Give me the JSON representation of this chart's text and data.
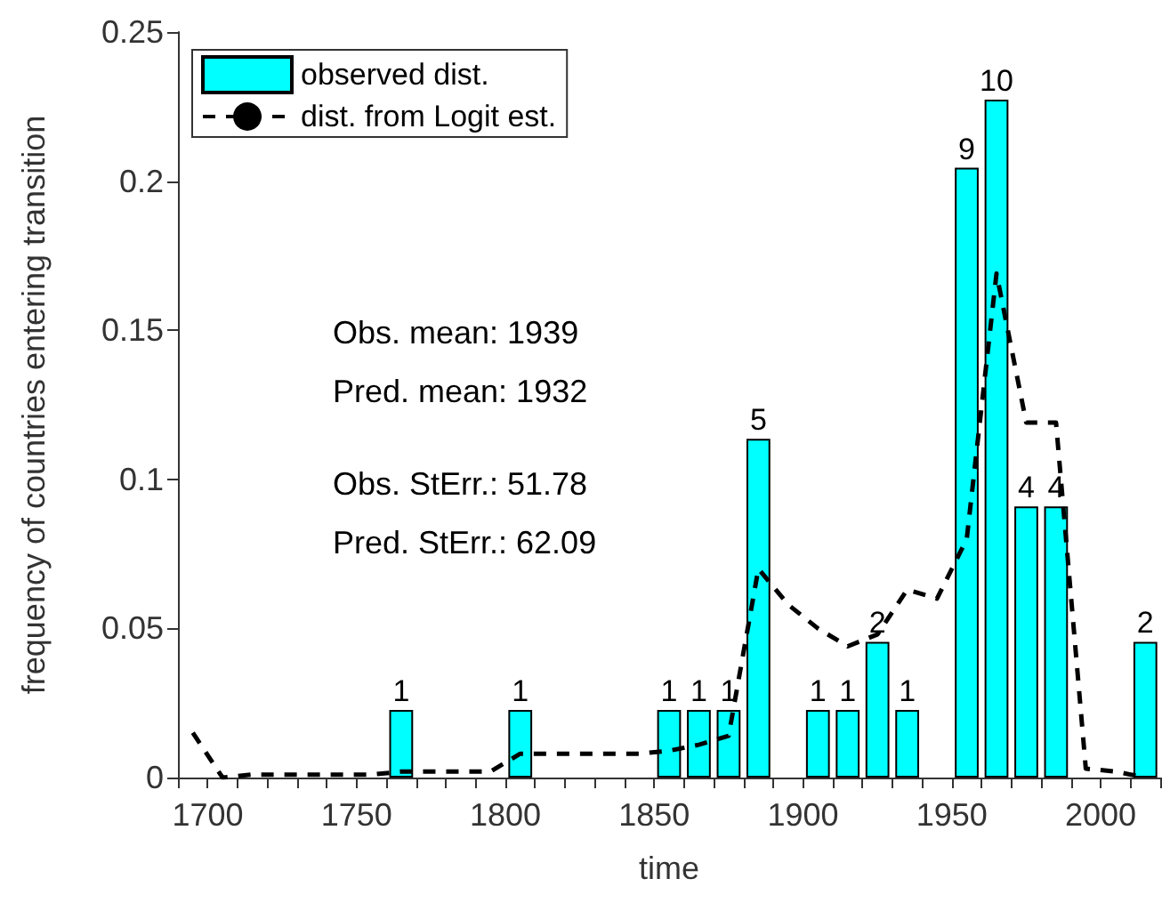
{
  "chart_data": {
    "type": "bar",
    "xlabel": "time",
    "ylabel": "frequency of countries entering transition",
    "series": [
      {
        "name": "observed dist.",
        "color": "#00ffff",
        "x": [
          1765,
          1805,
          1855,
          1865,
          1875,
          1885,
          1905,
          1915,
          1925,
          1935,
          1955,
          1965,
          1975,
          1985,
          2015
        ],
        "values": [
          0.0227,
          0.0227,
          0.0227,
          0.0227,
          0.0227,
          0.1136,
          0.0227,
          0.0227,
          0.0455,
          0.0227,
          0.2045,
          0.2273,
          0.0909,
          0.0909,
          0.0455
        ]
      },
      {
        "name": "dist. from Logit est.",
        "type": "line",
        "color": "#000000",
        "line_style": "dashed",
        "marker": "none",
        "x": [
          1695,
          1705,
          1715,
          1725,
          1735,
          1745,
          1755,
          1765,
          1775,
          1785,
          1795,
          1805,
          1815,
          1825,
          1835,
          1845,
          1855,
          1865,
          1875,
          1885,
          1895,
          1905,
          1915,
          1925,
          1935,
          1945,
          1955,
          1965,
          1975,
          1985,
          1995,
          2005,
          2015
        ],
        "values": [
          0.015,
          0.0,
          0.001,
          0.001,
          0.001,
          0.001,
          0.001,
          0.002,
          0.002,
          0.002,
          0.002,
          0.008,
          0.008,
          0.008,
          0.008,
          0.008,
          0.009,
          0.011,
          0.014,
          0.07,
          0.058,
          0.05,
          0.044,
          0.048,
          0.063,
          0.06,
          0.08,
          0.169,
          0.119,
          0.119,
          0.003,
          0.002,
          0.0
        ]
      }
    ],
    "xlim": [
      1690,
      2020
    ],
    "xticks": [
      {
        "value": 1690,
        "label": null
      },
      1700,
      {
        "value": 1710,
        "label": null
      },
      {
        "value": 1720,
        "label": null
      },
      {
        "value": 1730,
        "label": null
      },
      {
        "value": 1740,
        "label": null
      },
      1750,
      {
        "value": 1760,
        "label": null
      },
      {
        "value": 1770,
        "label": null
      },
      {
        "value": 1780,
        "label": null
      },
      {
        "value": 1790,
        "label": null
      },
      1800,
      {
        "value": 1810,
        "label": null
      },
      {
        "value": 1820,
        "label": null
      },
      {
        "value": 1830,
        "label": null
      },
      {
        "value": 1840,
        "label": null
      },
      1850,
      {
        "value": 1860,
        "label": null
      },
      {
        "value": 1870,
        "label": null
      },
      {
        "value": 1880,
        "label": null
      },
      {
        "value": 1890,
        "label": null
      },
      1900,
      {
        "value": 1910,
        "label": null
      },
      {
        "value": 1920,
        "label": null
      },
      {
        "value": 1930,
        "label": null
      },
      {
        "value": 1940,
        "label": null
      },
      1950,
      {
        "value": 1960,
        "label": null
      },
      {
        "value": 1970,
        "label": null
      },
      {
        "value": 1980,
        "label": null
      },
      {
        "value": 1990,
        "label": null
      },
      2000,
      {
        "value": 2010,
        "label": null
      },
      {
        "value": 2020,
        "label": null
      }
    ],
    "ylim": [
      0,
      0.25
    ],
    "yticks": [
      0,
      0.05,
      0.1,
      0.15,
      0.2,
      0.25
    ],
    "grid": false,
    "legend": "top left",
    "annotations": [
      "Obs. mean: 1939",
      "Pred. mean: 1932",
      "Obs. StErr.: 51.78",
      "Pred. StErr.: 62.09",
      {
        "text": "1",
        "x": 1765,
        "y": 0.0227
      },
      {
        "text": "1",
        "x": 1805,
        "y": 0.0227
      },
      {
        "text": "1",
        "x": 1855,
        "y": 0.0227
      },
      {
        "text": "1",
        "x": 1865,
        "y": 0.0227
      },
      {
        "text": "1",
        "x": 1875,
        "y": 0.0227
      },
      {
        "text": "5",
        "x": 1885,
        "y": 0.1136
      },
      {
        "text": "1",
        "x": 1905,
        "y": 0.0227
      },
      {
        "text": "1",
        "x": 1915,
        "y": 0.0227
      },
      {
        "text": "2",
        "x": 1925,
        "y": 0.0455
      },
      {
        "text": "1",
        "x": 1935,
        "y": 0.0227
      },
      {
        "text": "9",
        "x": 1955,
        "y": 0.2045
      },
      {
        "text": "10",
        "x": 1965,
        "y": 0.2273
      },
      {
        "text": "4",
        "x": 1975,
        "y": 0.0909
      },
      {
        "text": "4",
        "x": 1985,
        "y": 0.0909
      },
      {
        "text": "2",
        "x": 2015,
        "y": 0.0455
      }
    ]
  }
}
